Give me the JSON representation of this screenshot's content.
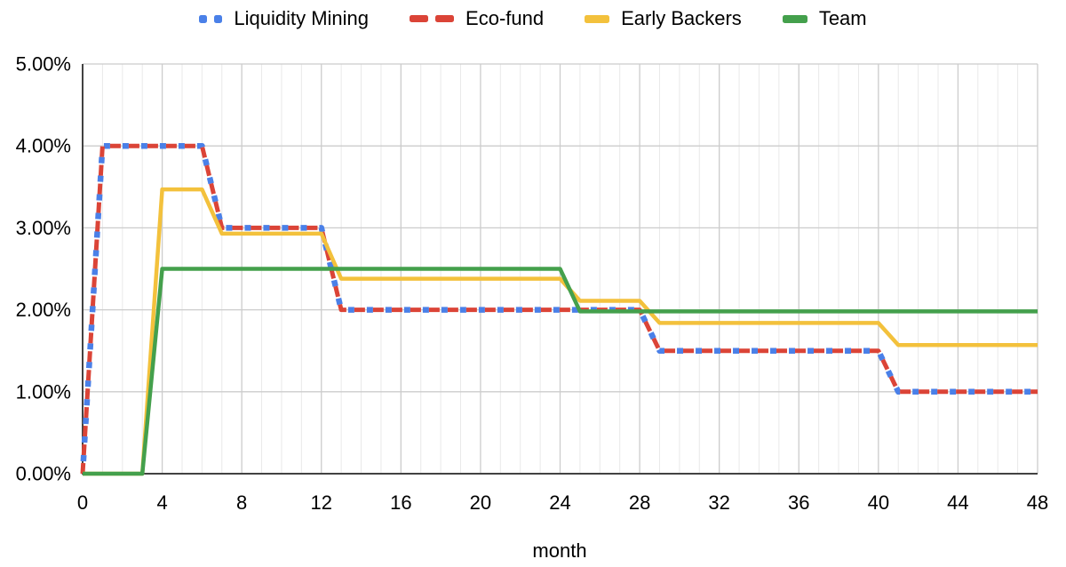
{
  "chart_data": {
    "type": "line",
    "title": "",
    "xlabel": "month",
    "ylabel": "",
    "xlim": [
      0,
      48
    ],
    "ylim": [
      0,
      5
    ],
    "x_tick_labels": [
      "0",
      "4",
      "8",
      "12",
      "16",
      "20",
      "24",
      "28",
      "32",
      "36",
      "40",
      "44",
      "48"
    ],
    "y_tick_labels": [
      "0.00%",
      "1.00%",
      "2.00%",
      "3.00%",
      "4.00%",
      "5.00%"
    ],
    "grid": {
      "vertical_minor_every_months": 1,
      "vertical_major_every_months": 4,
      "horizontal_every_percent": 1
    },
    "legend_position": "top",
    "series": [
      {
        "name": "Liquidity Mining",
        "color": "#4a80e8",
        "style": "dotted",
        "unit": "percent_per_month",
        "points": [
          [
            0,
            0
          ],
          [
            1,
            4.0
          ],
          [
            6,
            4.0
          ],
          [
            7,
            3.0
          ],
          [
            12,
            3.0
          ],
          [
            13,
            2.0
          ],
          [
            28,
            2.0
          ],
          [
            29,
            1.5
          ],
          [
            40,
            1.5
          ],
          [
            41,
            1.0
          ],
          [
            48,
            1.0
          ]
        ]
      },
      {
        "name": "Eco-fund",
        "color": "#db4437",
        "style": "dashed",
        "unit": "percent_per_month",
        "points": [
          [
            0,
            0
          ],
          [
            1,
            4.0
          ],
          [
            6,
            4.0
          ],
          [
            7,
            3.0
          ],
          [
            12,
            3.0
          ],
          [
            13,
            2.0
          ],
          [
            28,
            2.0
          ],
          [
            29,
            1.5
          ],
          [
            40,
            1.5
          ],
          [
            41,
            1.0
          ],
          [
            48,
            1.0
          ]
        ]
      },
      {
        "name": "Early Backers",
        "color": "#f3c13c",
        "style": "solid",
        "unit": "percent_per_month",
        "points": [
          [
            0,
            0
          ],
          [
            3,
            0
          ],
          [
            4,
            3.47
          ],
          [
            6,
            3.47
          ],
          [
            7,
            2.93
          ],
          [
            12,
            2.93
          ],
          [
            13,
            2.38
          ],
          [
            24,
            2.38
          ],
          [
            25,
            2.11
          ],
          [
            28,
            2.11
          ],
          [
            29,
            1.84
          ],
          [
            40,
            1.84
          ],
          [
            41,
            1.57
          ],
          [
            48,
            1.57
          ]
        ]
      },
      {
        "name": "Team",
        "color": "#44a04c",
        "style": "solid",
        "unit": "percent_per_month",
        "points": [
          [
            0,
            0
          ],
          [
            3,
            0
          ],
          [
            4,
            2.5
          ],
          [
            24,
            2.5
          ],
          [
            25,
            1.98
          ],
          [
            48,
            1.98
          ]
        ]
      }
    ]
  },
  "colors": {
    "background": "#ffffff",
    "axis": "#424242",
    "grid_major": "#cccccc",
    "grid_minor": "#e9e9e9",
    "text": "#000000"
  }
}
